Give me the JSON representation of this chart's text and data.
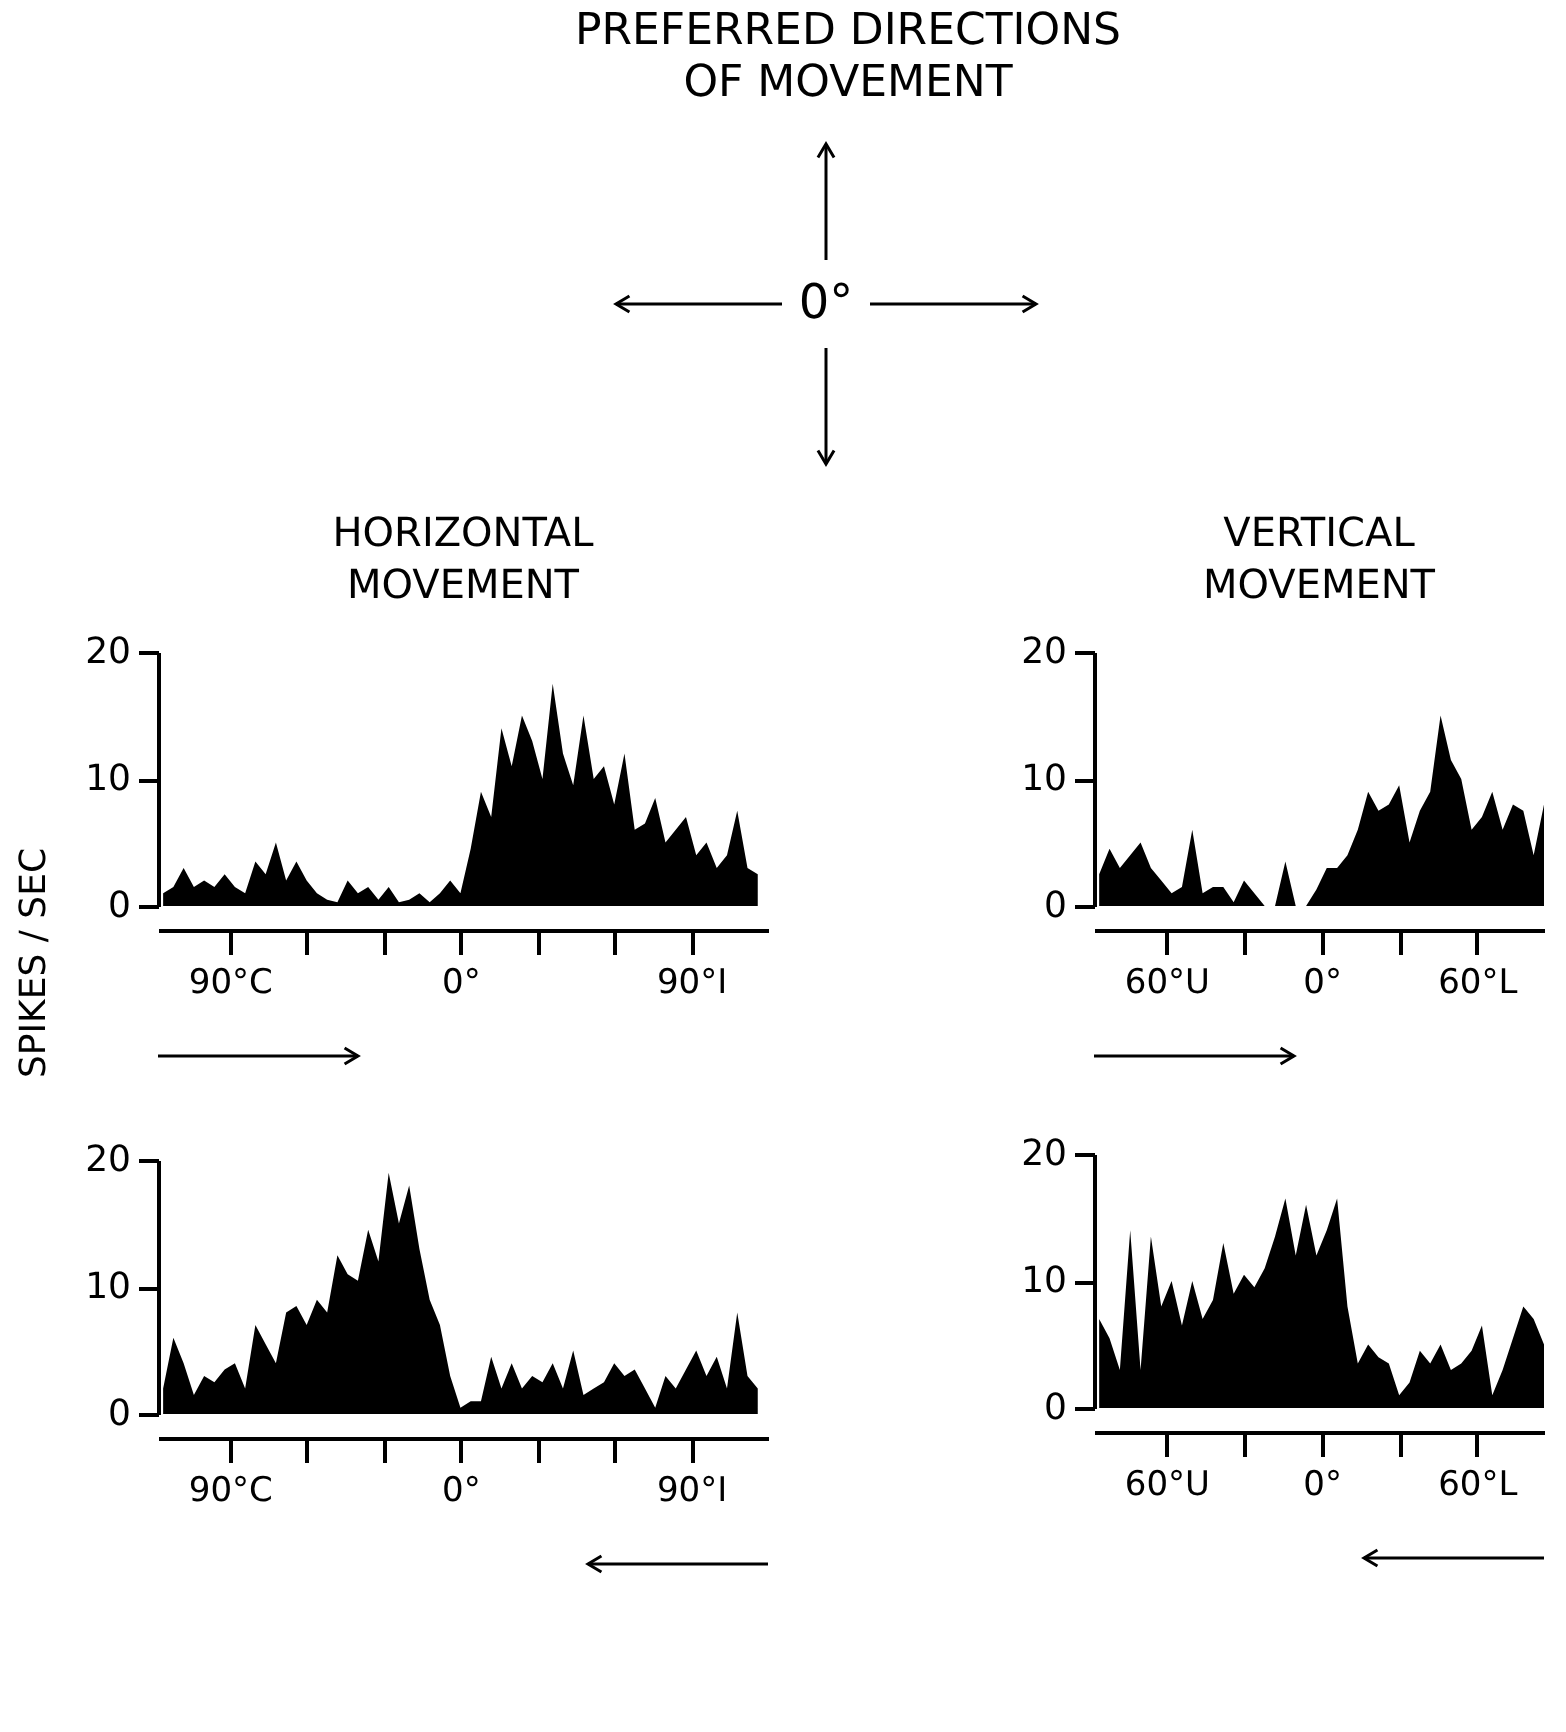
{
  "chart_data": [
    {
      "type": "other",
      "title": "PREFERRED DIRECTIONS\nOF MOVEMENT",
      "annotations": [
        "0°"
      ]
    },
    {
      "type": "area",
      "title": "HORIZONTAL\nMOVEMENT",
      "ylabel": "SPIKES / SEC",
      "color": "#000000",
      "xlim": [
        -118,
        120
      ],
      "ylim": [
        0,
        20
      ],
      "yticks": [
        0,
        10,
        20
      ],
      "xticks": [
        {
          "value": -90,
          "label": "90°C"
        },
        {
          "value": -60,
          "label": null
        },
        {
          "value": -30,
          "label": null
        },
        {
          "value": 0,
          "label": "0°"
        },
        {
          "value": 30,
          "label": null
        },
        {
          "value": 60,
          "label": null
        },
        {
          "value": 90,
          "label": "90°I"
        }
      ],
      "x": [
        -116,
        -112,
        -108,
        -104,
        -100,
        -96,
        -92,
        -88,
        -84,
        -80,
        -76,
        -72,
        -68,
        -64,
        -60,
        -56,
        -52,
        -48,
        -44,
        -40,
        -36,
        -32,
        -28,
        -24,
        -20,
        -16,
        -12,
        -8,
        -4,
        0,
        4,
        8,
        12,
        16,
        20,
        24,
        28,
        32,
        36,
        40,
        44,
        48,
        52,
        56,
        60,
        64,
        68,
        72,
        76,
        80,
        84,
        88,
        92,
        96,
        100,
        104,
        108,
        112,
        116
      ],
      "values": [
        1,
        1.5,
        3,
        1.5,
        2,
        1.5,
        2.5,
        1.5,
        1,
        3.5,
        2.5,
        5,
        2,
        3.5,
        2,
        1,
        0.5,
        0.3,
        2,
        1,
        1.5,
        0.5,
        1.5,
        0.3,
        0.5,
        1,
        0.3,
        1,
        2,
        1,
        4.5,
        9,
        7,
        14,
        11,
        15,
        13,
        10,
        17.5,
        12,
        9.5,
        15,
        10,
        11,
        8,
        12,
        6,
        6.5,
        8.5,
        5,
        6,
        7,
        4,
        5,
        3,
        4,
        7.5,
        3,
        2.5
      ]
    },
    {
      "type": "area",
      "title": "VERTICAL\nMOVEMENT",
      "color": "#000000",
      "xlim": [
        -88,
        86
      ],
      "ylim": [
        0,
        20
      ],
      "yticks": [
        0,
        10,
        20
      ],
      "xticks": [
        {
          "value": -60,
          "label": "60°U"
        },
        {
          "value": -30,
          "label": null
        },
        {
          "value": 0,
          "label": "0°"
        },
        {
          "value": 30,
          "label": null
        },
        {
          "value": 60,
          "label": "60°L"
        }
      ],
      "x": [
        -86,
        -82,
        -78,
        -74,
        -70,
        -66,
        -62,
        -58,
        -54,
        -50,
        -46,
        -42,
        -38,
        -34,
        -30,
        -26,
        -22,
        -18,
        -14,
        -10,
        -6,
        -2,
        2,
        6,
        10,
        14,
        18,
        22,
        26,
        30,
        34,
        38,
        42,
        46,
        50,
        54,
        58,
        62,
        66,
        70,
        74,
        78,
        82,
        86
      ],
      "values": [
        2.5,
        4.5,
        3,
        4,
        5,
        3,
        2,
        1,
        1.5,
        6,
        1,
        1.5,
        1.5,
        0.3,
        2,
        1,
        0,
        0,
        3.5,
        0,
        0,
        1.3,
        3,
        3,
        4,
        6,
        9,
        7.5,
        8,
        9.5,
        5,
        7.5,
        9,
        15,
        11.5,
        10,
        6,
        7,
        9,
        6,
        8,
        7.5,
        4,
        8
      ]
    },
    {
      "type": "area",
      "color": "#000000",
      "xlim": [
        -118,
        120
      ],
      "ylim": [
        0,
        20
      ],
      "yticks": [
        0,
        10,
        20
      ],
      "xticks": [
        {
          "value": -90,
          "label": "90°C"
        },
        {
          "value": -60,
          "label": null
        },
        {
          "value": -30,
          "label": null
        },
        {
          "value": 0,
          "label": "0°"
        },
        {
          "value": 30,
          "label": null
        },
        {
          "value": 60,
          "label": null
        },
        {
          "value": 90,
          "label": "90°I"
        }
      ],
      "x": [
        -116,
        -112,
        -108,
        -104,
        -100,
        -96,
        -92,
        -88,
        -84,
        -80,
        -76,
        -72,
        -68,
        -64,
        -60,
        -56,
        -52,
        -48,
        -44,
        -40,
        -36,
        -32,
        -28,
        -24,
        -20,
        -16,
        -12,
        -8,
        -4,
        0,
        4,
        8,
        12,
        16,
        20,
        24,
        28,
        32,
        36,
        40,
        44,
        48,
        52,
        56,
        60,
        64,
        68,
        72,
        76,
        80,
        84,
        88,
        92,
        96,
        100,
        104,
        108,
        112,
        116
      ],
      "values": [
        2,
        6,
        4,
        1.5,
        3,
        2.5,
        3.5,
        4,
        2,
        7,
        5.5,
        4,
        8,
        8.5,
        7,
        9,
        8,
        12.5,
        11,
        10.5,
        14.5,
        12,
        19,
        15,
        18,
        13,
        9,
        7,
        3,
        0.5,
        1,
        1,
        4.5,
        2,
        4,
        2,
        3,
        2.5,
        4,
        2,
        5,
        1.5,
        2,
        2.5,
        4,
        3,
        3.5,
        2,
        0.5,
        3,
        2,
        3.5,
        5,
        3,
        4.5,
        2,
        8,
        3,
        2
      ]
    },
    {
      "type": "area",
      "color": "#000000",
      "xlim": [
        -88,
        86
      ],
      "ylim": [
        0,
        20
      ],
      "yticks": [
        0,
        10,
        20
      ],
      "xticks": [
        {
          "value": -60,
          "label": "60°U"
        },
        {
          "value": -30,
          "label": null
        },
        {
          "value": 0,
          "label": "0°"
        },
        {
          "value": 30,
          "label": null
        },
        {
          "value": 60,
          "label": "60°L"
        }
      ],
      "x": [
        -86,
        -82,
        -78,
        -74,
        -70,
        -66,
        -62,
        -58,
        -54,
        -50,
        -46,
        -42,
        -38,
        -34,
        -30,
        -26,
        -22,
        -18,
        -14,
        -10,
        -6,
        -2,
        2,
        6,
        10,
        14,
        18,
        22,
        26,
        30,
        34,
        38,
        42,
        46,
        50,
        54,
        58,
        62,
        66,
        70,
        74,
        78,
        82,
        86
      ],
      "values": [
        7,
        5.5,
        3,
        14,
        3,
        13.5,
        8,
        10,
        6.5,
        10,
        7,
        8.5,
        13,
        9,
        10.5,
        9.5,
        11,
        13.5,
        16.5,
        12,
        16,
        12,
        14,
        16.5,
        8,
        3.5,
        5,
        4,
        3.5,
        1,
        2,
        4.5,
        3.5,
        5,
        3,
        3.5,
        4.5,
        6.5,
        1,
        3,
        5.5,
        8,
        7,
        5
      ]
    }
  ]
}
